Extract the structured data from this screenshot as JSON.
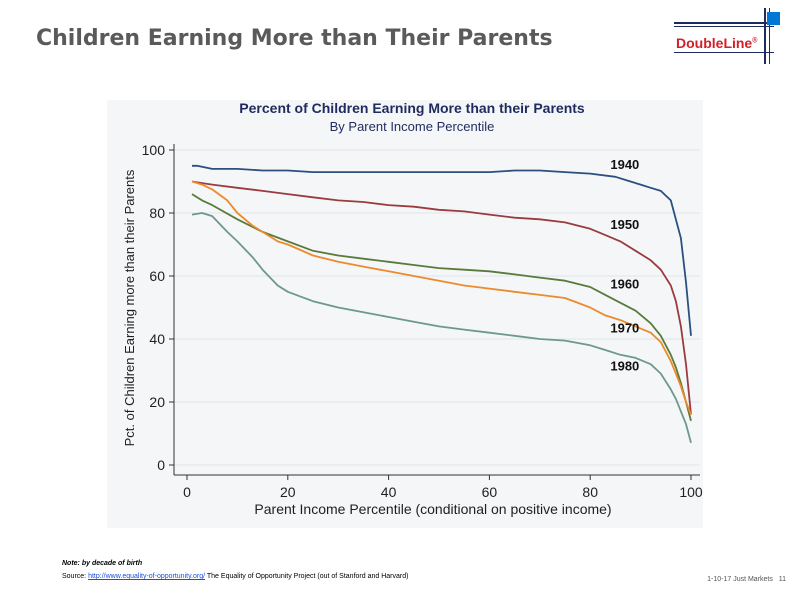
{
  "slide": {
    "title": "Children Earning More than Their Parents",
    "logo_text": "DoubleLine",
    "logo_mark": "®"
  },
  "footer": {
    "note": "Note:  by decade of birth",
    "source_label": "Source:",
    "source_link": "http://www.equality-of-opportunity.org/",
    "source_text": "The Equality of Opportunity Project (out of Stanford and Harvard)",
    "date_label": "1-10-17 Just Markets",
    "page_number": "11"
  },
  "colors": {
    "title": "#5a5a5a",
    "logo_red": "#d0212a",
    "logo_navy": "#1f2b5e",
    "logo_blue": "#0078d4",
    "panel_bg": "#f4f6f8",
    "grid": "#dfe6ec"
  },
  "chart_data": {
    "type": "line",
    "title": "Percent of Children Earning More than their Parents",
    "subtitle": "By Parent Income Percentile",
    "xlabel": "Parent Income Percentile (conditional on positive income)",
    "ylabel": "Pct. of Children Earning more than their Parents",
    "xlim": [
      0,
      100
    ],
    "ylim": [
      0,
      100
    ],
    "xticks": [
      0,
      20,
      40,
      60,
      80,
      100
    ],
    "yticks": [
      0,
      20,
      40,
      60,
      80,
      100
    ],
    "grid": "horizontal",
    "series": [
      {
        "name": "1940",
        "color": "#2b4f7e",
        "x": [
          1,
          2,
          5,
          10,
          15,
          20,
          25,
          30,
          35,
          40,
          45,
          50,
          55,
          60,
          65,
          70,
          75,
          80,
          85,
          88,
          90,
          92,
          94,
          96,
          98,
          99,
          100
        ],
        "y": [
          95,
          95,
          94,
          94,
          93.5,
          93.5,
          93,
          93,
          93,
          93,
          93,
          93,
          93,
          93,
          93.5,
          93.5,
          93,
          92.5,
          91.5,
          90,
          89,
          88,
          87,
          84,
          72,
          58,
          41
        ]
      },
      {
        "name": "1950",
        "color": "#9b3b3f",
        "x": [
          1,
          3,
          5,
          10,
          15,
          20,
          25,
          30,
          35,
          40,
          45,
          50,
          55,
          60,
          65,
          70,
          75,
          80,
          83,
          86,
          89,
          92,
          94,
          96,
          97,
          98,
          99,
          100
        ],
        "y": [
          90,
          89.5,
          89,
          88,
          87,
          86,
          85,
          84,
          83.5,
          82.5,
          82,
          81,
          80.5,
          79.5,
          78.5,
          78,
          77,
          75,
          73,
          71,
          68,
          65,
          62,
          57,
          52,
          44,
          32,
          16
        ]
      },
      {
        "name": "1960",
        "color": "#5a7a3a",
        "x": [
          1,
          3,
          5,
          10,
          15,
          20,
          25,
          30,
          35,
          40,
          45,
          50,
          55,
          60,
          65,
          70,
          75,
          80,
          83,
          86,
          89,
          92,
          94,
          96,
          97,
          98,
          99,
          100
        ],
        "y": [
          86,
          84,
          82.5,
          78,
          74,
          71,
          68,
          66.5,
          65.5,
          64.5,
          63.5,
          62.5,
          62,
          61.5,
          60.5,
          59.5,
          58.5,
          56.5,
          54,
          51.5,
          49,
          45,
          41,
          35,
          31,
          26,
          20,
          14
        ]
      },
      {
        "name": "1970",
        "color": "#ec8a2c",
        "x": [
          1,
          3,
          5,
          8,
          10,
          13,
          15,
          18,
          20,
          25,
          30,
          35,
          40,
          45,
          50,
          55,
          60,
          65,
          70,
          75,
          80,
          83,
          86,
          89,
          92,
          94,
          96,
          97,
          98,
          99,
          100
        ],
        "y": [
          90,
          89,
          87.5,
          84,
          80,
          76,
          74,
          71,
          70,
          66.5,
          64.5,
          63,
          61.5,
          60,
          58.5,
          57,
          56,
          55,
          54,
          53,
          50,
          47.5,
          46,
          44,
          42,
          39,
          33,
          29,
          25,
          20,
          16
        ]
      },
      {
        "name": "1980",
        "color": "#6d998c",
        "x": [
          1,
          3,
          5,
          8,
          10,
          13,
          15,
          18,
          20,
          25,
          30,
          35,
          40,
          45,
          50,
          55,
          60,
          65,
          70,
          75,
          80,
          83,
          86,
          89,
          92,
          94,
          96,
          97,
          98,
          99,
          100
        ],
        "y": [
          79.5,
          80,
          79,
          74,
          71,
          66,
          62,
          57,
          55,
          52,
          50,
          48.5,
          47,
          45.5,
          44,
          43,
          42,
          41,
          40,
          39.5,
          38,
          36.5,
          35,
          34,
          32,
          29,
          24,
          21,
          17,
          13,
          7
        ]
      }
    ],
    "line_labels": [
      {
        "text": "1940",
        "series": "1940",
        "x": 84,
        "y": 94
      },
      {
        "text": "1950",
        "series": "1950",
        "x": 84,
        "y": 75
      },
      {
        "text": "1960",
        "series": "1960",
        "x": 84,
        "y": 56
      },
      {
        "text": "1970",
        "series": "1970",
        "x": 84,
        "y": 42
      },
      {
        "text": "1980",
        "series": "1980",
        "x": 84,
        "y": 30
      }
    ]
  }
}
